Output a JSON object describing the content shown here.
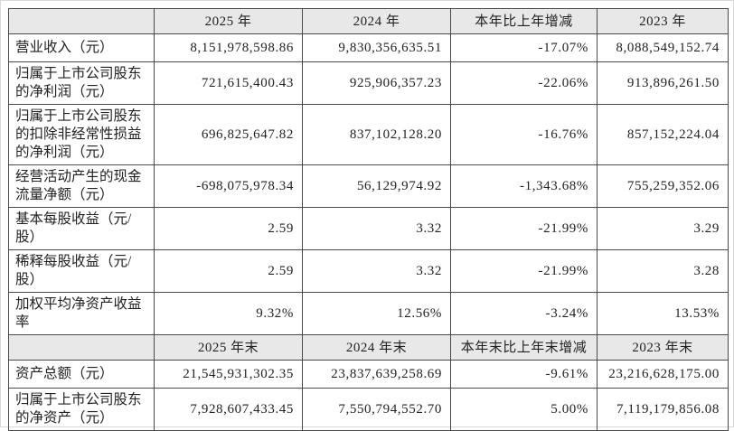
{
  "section1": {
    "headers": {
      "col1": "",
      "col2": "2025 年",
      "col3": "2024 年",
      "col4": "本年比上年增减",
      "col5": "2023 年"
    },
    "rows": [
      {
        "label": "营业收入（元）",
        "y2025": "8,151,978,598.86",
        "y2024": "9,830,356,635.51",
        "change": "-17.07%",
        "y2023": "8,088,549,152.74"
      },
      {
        "label": "归属于上市公司股东的净利润（元）",
        "y2025": "721,615,400.43",
        "y2024": "925,906,357.23",
        "change": "-22.06%",
        "y2023": "913,896,261.50"
      },
      {
        "label": "归属于上市公司股东的扣除非经常性损益的净利润（元）",
        "y2025": "696,825,647.82",
        "y2024": "837,102,128.20",
        "change": "-16.76%",
        "y2023": "857,152,224.04"
      },
      {
        "label": "经营活动产生的现金流量净额（元）",
        "y2025": "-698,075,978.34",
        "y2024": "56,129,974.92",
        "change": "-1,343.68%",
        "y2023": "755,259,352.06"
      },
      {
        "label": "基本每股收益（元/股）",
        "y2025": "2.59",
        "y2024": "3.32",
        "change": "-21.99%",
        "y2023": "3.29"
      },
      {
        "label": "稀释每股收益（元/股）",
        "y2025": "2.59",
        "y2024": "3.32",
        "change": "-21.99%",
        "y2023": "3.28"
      },
      {
        "label": "加权平均净资产收益率",
        "y2025": "9.32%",
        "y2024": "12.56%",
        "change": "-3.24%",
        "y2023": "13.53%"
      }
    ]
  },
  "section2": {
    "headers": {
      "col1": "",
      "col2": "2025 年末",
      "col3": "2024 年末",
      "col4": "本年末比上年末增减",
      "col5": "2023 年末"
    },
    "rows": [
      {
        "label": "资产总额（元）",
        "y2025": "21,545,931,302.35",
        "y2024": "23,837,639,258.69",
        "change": "-9.61%",
        "y2023": "23,216,628,175.00"
      },
      {
        "label": "归属于上市公司股东的净资产（元）",
        "y2025": "7,928,607,433.45",
        "y2024": "7,550,794,552.70",
        "change": "5.00%",
        "y2023": "7,119,179,856.08"
      }
    ]
  },
  "colors": {
    "header_bg": "#e8e8e8",
    "border": "#4a4a4a",
    "text": "#222222",
    "page_frame": "#d9d9d9"
  }
}
